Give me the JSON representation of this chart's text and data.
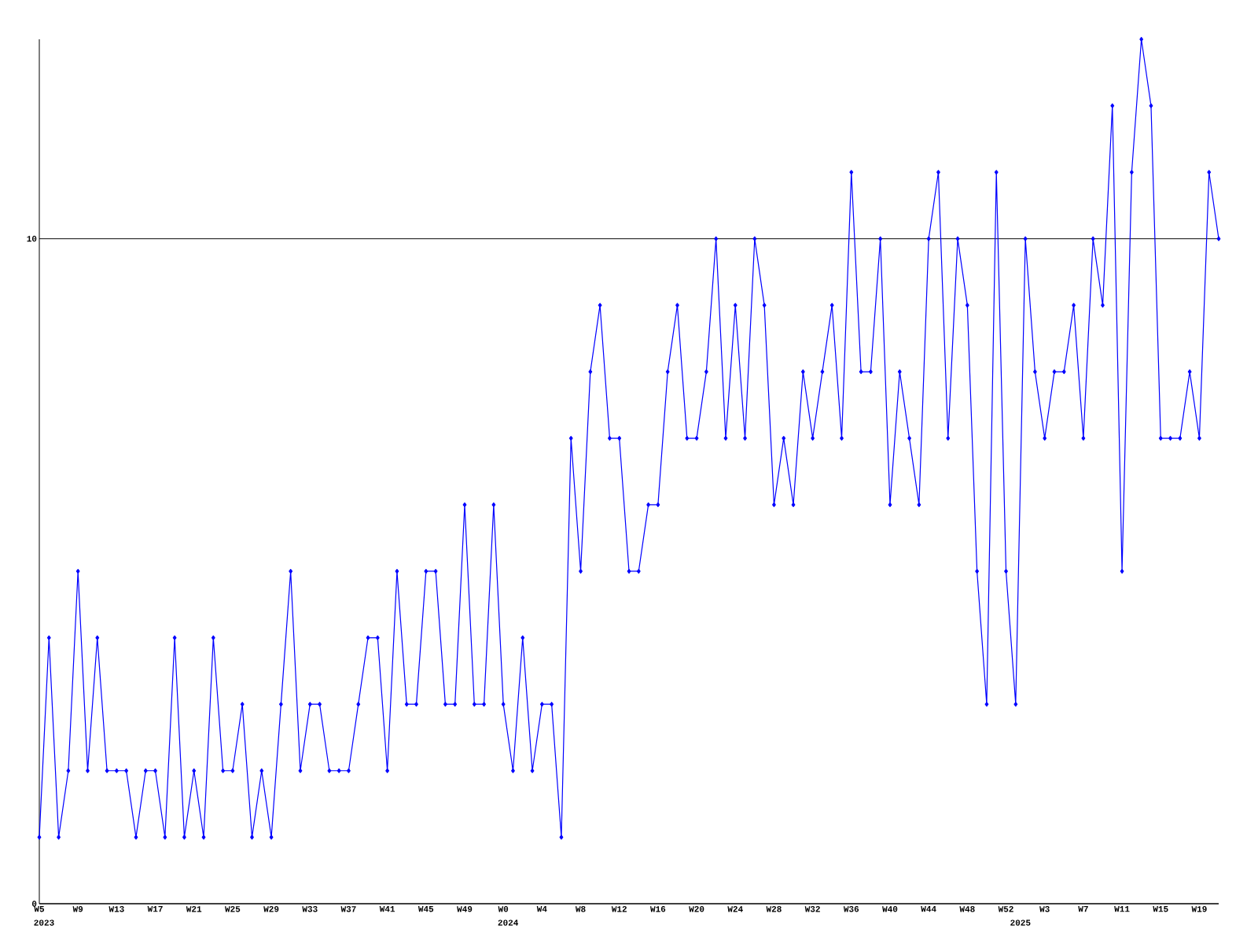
{
  "chart_data": {
    "type": "line",
    "color": "#0000ff",
    "marker": "diamond",
    "grid": "y",
    "ylim": [
      0,
      13
    ],
    "yticks": [
      0,
      10
    ],
    "categories": [
      "W5",
      null,
      null,
      null,
      "W9",
      null,
      null,
      null,
      "W13",
      null,
      null,
      null,
      "W17",
      null,
      null,
      null,
      "W21",
      null,
      null,
      null,
      "W25",
      null,
      null,
      null,
      "W29",
      null,
      null,
      null,
      "W33",
      null,
      null,
      null,
      "W37",
      null,
      null,
      null,
      "W41",
      null,
      null,
      null,
      "W45",
      null,
      null,
      null,
      "W49",
      null,
      null,
      null,
      "W0",
      null,
      null,
      null,
      "W4",
      null,
      null,
      null,
      "W8",
      null,
      null,
      null,
      "W12",
      null,
      null,
      null,
      "W16",
      null,
      null,
      null,
      "W20",
      null,
      null,
      null,
      "W24",
      null,
      null,
      null,
      "W28",
      null,
      null,
      null,
      "W32",
      null,
      null,
      null,
      "W36",
      null,
      null,
      null,
      "W40",
      null,
      null,
      null,
      "W44",
      null,
      null,
      null,
      "W48",
      null,
      null,
      null,
      "W52",
      null,
      null,
      null,
      "W3",
      null,
      null,
      null,
      "W7",
      null,
      null,
      null,
      "W11",
      null,
      null,
      null,
      "W15",
      null,
      null,
      null,
      "W19",
      null,
      null
    ],
    "values": [
      1,
      4,
      1,
      2,
      5,
      2,
      4,
      2,
      2,
      2,
      1,
      2,
      2,
      1,
      4,
      1,
      2,
      1,
      4,
      2,
      2,
      3,
      1,
      2,
      1,
      3,
      5,
      2,
      3,
      3,
      2,
      2,
      2,
      3,
      4,
      4,
      2,
      5,
      3,
      3,
      5,
      5,
      3,
      3,
      6,
      3,
      3,
      6,
      3,
      2,
      4,
      2,
      3,
      3,
      1,
      7,
      5,
      8,
      9,
      7,
      7,
      5,
      5,
      6,
      6,
      8,
      9,
      7,
      7,
      8,
      10,
      7,
      9,
      7,
      10,
      9,
      6,
      7,
      6,
      8,
      7,
      8,
      9,
      7,
      11,
      8,
      8,
      10,
      6,
      8,
      7,
      6,
      10,
      11,
      7,
      10,
      9,
      5,
      3,
      11,
      5,
      3,
      10,
      8,
      7,
      8,
      8,
      9,
      7,
      10,
      9,
      12,
      5,
      11,
      13,
      12,
      7,
      7,
      7,
      8,
      7,
      11,
      10
    ],
    "annotations": [
      "2023",
      "2024",
      "2025"
    ]
  }
}
